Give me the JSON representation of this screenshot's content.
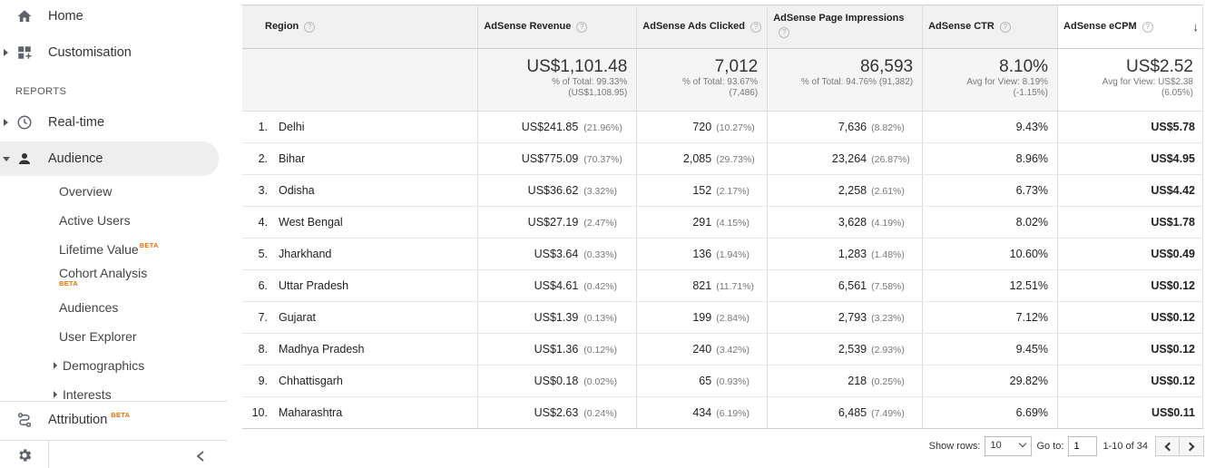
{
  "sidebar": {
    "home": "Home",
    "customisation": "Customisation",
    "reports_header": "REPORTS",
    "realtime": "Real-time",
    "audience": "Audience",
    "audience_items": {
      "overview": "Overview",
      "active_users": "Active Users",
      "lifetime_value": "Lifetime Value",
      "cohort_analysis": "Cohort Analysis",
      "audiences": "Audiences",
      "user_explorer": "User Explorer",
      "demographics": "Demographics",
      "interests": "Interests"
    },
    "beta_label": "BETA",
    "attribution": "Attribution"
  },
  "table": {
    "headers": {
      "region": "Region",
      "revenue": "AdSense Revenue",
      "ads_clicked": "AdSense Ads Clicked",
      "impressions": "AdSense Page Impressions",
      "ctr": "AdSense CTR",
      "ecpm": "AdSense eCPM"
    },
    "help_glyph": "?",
    "sort_glyph": "↓",
    "totals": {
      "revenue": {
        "value": "US$1,101.48",
        "line1": "% of Total: 99.33%",
        "line2": "(US$1,108.95)"
      },
      "ads_clicked": {
        "value": "7,012",
        "line1": "% of Total: 93.67%",
        "line2": "(7,486)"
      },
      "impressions": {
        "value": "86,593",
        "line1": "% of Total: 94.76% (91,382)",
        "line2": ""
      },
      "ctr": {
        "value": "8.10%",
        "line1": "Avg for View: 8.19%",
        "line2": "(-1.15%)"
      },
      "ecpm": {
        "value": "US$2.52",
        "line1": "Avg for View: US$2.38",
        "line2": "(6.05%)"
      }
    },
    "rows": [
      {
        "idx": "1.",
        "region": "Delhi",
        "revenue": "US$241.85",
        "revenue_pct": "(21.96%)",
        "clicks": "720",
        "clicks_pct": "(10.27%)",
        "impr": "7,636",
        "impr_pct": "(8.82%)",
        "ctr": "9.43%",
        "ecpm": "US$5.78"
      },
      {
        "idx": "2.",
        "region": "Bihar",
        "revenue": "US$775.09",
        "revenue_pct": "(70.37%)",
        "clicks": "2,085",
        "clicks_pct": "(29.73%)",
        "impr": "23,264",
        "impr_pct": "(26.87%)",
        "ctr": "8.96%",
        "ecpm": "US$4.95"
      },
      {
        "idx": "3.",
        "region": "Odisha",
        "revenue": "US$36.62",
        "revenue_pct": "(3.32%)",
        "clicks": "152",
        "clicks_pct": "(2.17%)",
        "impr": "2,258",
        "impr_pct": "(2.61%)",
        "ctr": "6.73%",
        "ecpm": "US$4.42"
      },
      {
        "idx": "4.",
        "region": "West Bengal",
        "revenue": "US$27.19",
        "revenue_pct": "(2.47%)",
        "clicks": "291",
        "clicks_pct": "(4.15%)",
        "impr": "3,628",
        "impr_pct": "(4.19%)",
        "ctr": "8.02%",
        "ecpm": "US$1.78"
      },
      {
        "idx": "5.",
        "region": "Jharkhand",
        "revenue": "US$3.64",
        "revenue_pct": "(0.33%)",
        "clicks": "136",
        "clicks_pct": "(1.94%)",
        "impr": "1,283",
        "impr_pct": "(1.48%)",
        "ctr": "10.60%",
        "ecpm": "US$0.49"
      },
      {
        "idx": "6.",
        "region": "Uttar Pradesh",
        "revenue": "US$4.61",
        "revenue_pct": "(0.42%)",
        "clicks": "821",
        "clicks_pct": "(11.71%)",
        "impr": "6,561",
        "impr_pct": "(7.58%)",
        "ctr": "12.51%",
        "ecpm": "US$0.12"
      },
      {
        "idx": "7.",
        "region": "Gujarat",
        "revenue": "US$1.39",
        "revenue_pct": "(0.13%)",
        "clicks": "199",
        "clicks_pct": "(2.84%)",
        "impr": "2,793",
        "impr_pct": "(3.23%)",
        "ctr": "7.12%",
        "ecpm": "US$0.12"
      },
      {
        "idx": "8.",
        "region": "Madhya Pradesh",
        "revenue": "US$1.36",
        "revenue_pct": "(0.12%)",
        "clicks": "240",
        "clicks_pct": "(3.42%)",
        "impr": "2,539",
        "impr_pct": "(2.93%)",
        "ctr": "9.45%",
        "ecpm": "US$0.12"
      },
      {
        "idx": "9.",
        "region": "Chhattisgarh",
        "revenue": "US$0.18",
        "revenue_pct": "(0.02%)",
        "clicks": "65",
        "clicks_pct": "(0.93%)",
        "impr": "218",
        "impr_pct": "(0.25%)",
        "ctr": "29.82%",
        "ecpm": "US$0.12"
      },
      {
        "idx": "10.",
        "region": "Maharashtra",
        "revenue": "US$2.63",
        "revenue_pct": "(0.24%)",
        "clicks": "434",
        "clicks_pct": "(6.19%)",
        "impr": "6,485",
        "impr_pct": "(7.49%)",
        "ctr": "6.69%",
        "ecpm": "US$0.11"
      }
    ]
  },
  "pager": {
    "show_rows_label": "Show rows:",
    "show_rows_value": "10",
    "goto_label": "Go to:",
    "goto_value": "1",
    "range": "1-10 of 34"
  }
}
